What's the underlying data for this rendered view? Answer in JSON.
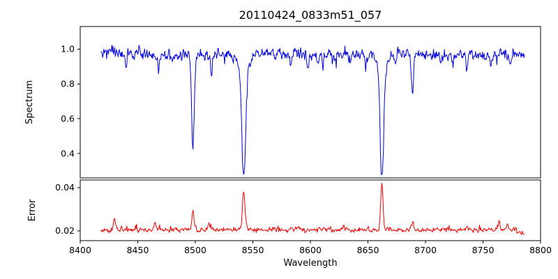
{
  "figure": {
    "background": "#ffffff",
    "axes_color": "#000000"
  },
  "chart_data": {
    "type": "line",
    "title": "20110424_0833m51_057",
    "xlabel": "Wavelength",
    "x_range": [
      8400,
      8800
    ],
    "x_ticks": [
      8400,
      8450,
      8500,
      8550,
      8600,
      8650,
      8700,
      8750,
      8800
    ],
    "data_x_range": [
      8418,
      8786
    ],
    "legend": "none",
    "grid": false,
    "panels": [
      {
        "name": "spectrum",
        "ylabel": "Spectrum",
        "color": "#0000dd",
        "ylim": [
          0.26,
          1.13
        ],
        "y_ticks": [
          0.4,
          0.6,
          0.8,
          1.0
        ],
        "tick_decimals": 1,
        "continuum": 0.97,
        "noise_amplitude": 0.022,
        "absorption_lines": [
          {
            "center": 8498.0,
            "depth": 0.51,
            "width": 1.6
          },
          {
            "center": 8542.1,
            "depth": 0.63,
            "width": 2.2,
            "wing_depth": 0.1,
            "wing_width": 7.0
          },
          {
            "center": 8662.1,
            "depth": 0.66,
            "width": 2.0,
            "wing_depth": 0.09,
            "wing_width": 6.0
          }
        ],
        "minor_lines": [
          {
            "center": 8440.0,
            "depth": 0.08,
            "width": 1.2
          },
          {
            "center": 8468.0,
            "depth": 0.1,
            "width": 1.0
          },
          {
            "center": 8514.0,
            "depth": 0.09,
            "width": 1.2
          },
          {
            "center": 8583.0,
            "depth": 0.07,
            "width": 1.0
          },
          {
            "center": 8598.0,
            "depth": 0.08,
            "width": 1.0
          },
          {
            "center": 8611.0,
            "depth": 0.06,
            "width": 1.0
          },
          {
            "center": 8648.0,
            "depth": 0.06,
            "width": 1.0
          },
          {
            "center": 8674.0,
            "depth": 0.07,
            "width": 1.0
          },
          {
            "center": 8688.6,
            "depth": 0.21,
            "width": 1.4
          },
          {
            "center": 8713.0,
            "depth": 0.06,
            "width": 1.0
          },
          {
            "center": 8736.0,
            "depth": 0.07,
            "width": 1.0
          },
          {
            "center": 8757.0,
            "depth": 0.06,
            "width": 1.0
          },
          {
            "center": 8773.0,
            "depth": 0.08,
            "width": 1.2
          }
        ]
      },
      {
        "name": "error",
        "ylabel": "Error",
        "color": "#ee0000",
        "ylim": [
          0.0155,
          0.0435
        ],
        "y_ticks": [
          0.02,
          0.04
        ],
        "tick_decimals": 2,
        "baseline": 0.0205,
        "noise_amplitude": 0.0008,
        "peaks": [
          {
            "center": 8430.0,
            "height": 0.004,
            "width": 1.5
          },
          {
            "center": 8465.0,
            "height": 0.0035,
            "width": 1.2
          },
          {
            "center": 8498.0,
            "height": 0.009,
            "width": 1.2
          },
          {
            "center": 8512.0,
            "height": 0.003,
            "width": 1.0
          },
          {
            "center": 8542.1,
            "height": 0.018,
            "width": 1.6
          },
          {
            "center": 8662.1,
            "height": 0.0215,
            "width": 1.4
          },
          {
            "center": 8689.0,
            "height": 0.004,
            "width": 1.0
          },
          {
            "center": 8736.0,
            "height": 0.002,
            "width": 1.0
          },
          {
            "center": 8764.0,
            "height": 0.0035,
            "width": 1.2
          },
          {
            "center": 8771.0,
            "height": 0.003,
            "width": 1.0
          }
        ]
      }
    ]
  }
}
